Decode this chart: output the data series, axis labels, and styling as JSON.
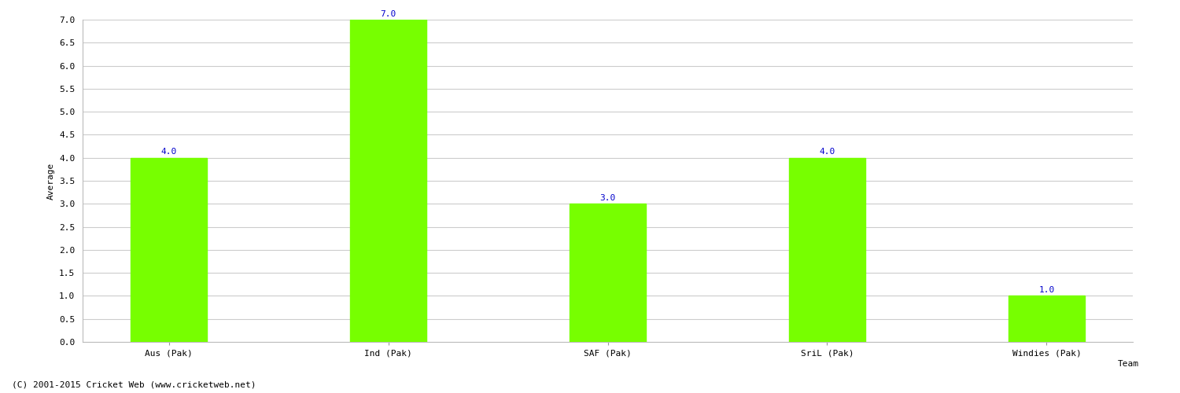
{
  "categories": [
    "Aus (Pak)",
    "Ind (Pak)",
    "SAF (Pak)",
    "SriL (Pak)",
    "Windies (Pak)"
  ],
  "values": [
    4.0,
    7.0,
    3.0,
    4.0,
    1.0
  ],
  "bar_color": "#77ff00",
  "bar_edge_color": "#77ff00",
  "xlabel": "Team",
  "ylabel": "Average",
  "ylim": [
    0.0,
    7.0
  ],
  "yticks": [
    0.0,
    0.5,
    1.0,
    1.5,
    2.0,
    2.5,
    3.0,
    3.5,
    4.0,
    4.5,
    5.0,
    5.5,
    6.0,
    6.5,
    7.0
  ],
  "label_color": "#0000cc",
  "label_fontsize": 8,
  "grid_color": "#cccccc",
  "bg_color": "#ffffff",
  "footer_text": "(C) 2001-2015 Cricket Web (www.cricketweb.net)",
  "footer_fontsize": 8,
  "axis_label_fontsize": 8,
  "tick_fontsize": 8,
  "bar_width": 0.35
}
